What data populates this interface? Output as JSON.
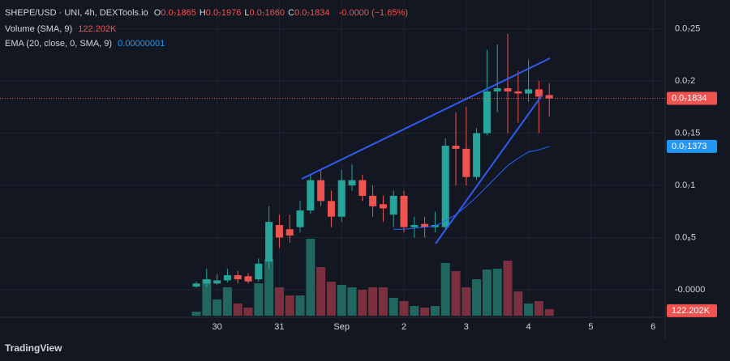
{
  "chart_data": {
    "type": "candlestick",
    "header": {
      "symbol": "SHEPE/USD · UNI, 4h, DEXTools.io",
      "ohlc": [
        {
          "key": "O",
          "label": "0.0₇1865"
        },
        {
          "key": "H",
          "label": "0.0₇1976"
        },
        {
          "key": "L",
          "label": "0.0₇1660"
        },
        {
          "key": "C",
          "label": "0.0₇1834"
        }
      ],
      "change": "-0.0000 (−1.65%)"
    },
    "categories": [
      null,
      null,
      "30",
      null,
      null,
      null,
      null,
      null,
      "31",
      null,
      null,
      null,
      null,
      null,
      "Sep",
      null,
      null,
      null,
      null,
      null,
      "2",
      null,
      null,
      null,
      null,
      null,
      "3",
      null,
      null,
      null,
      null,
      null,
      "4",
      null,
      null,
      null,
      null,
      null,
      "5",
      null,
      null,
      null,
      null,
      null,
      "6"
    ],
    "open": [
      3e-10,
      6e-10,
      6e-10,
      9e-10,
      1.4e-09,
      1.3e-09,
      1e-09,
      2.7e-09,
      6.2e-09,
      5.8e-09,
      6e-09,
      7.6e-09,
      1.05e-08,
      8.5e-09,
      7e-09,
      1e-08,
      1.05e-08,
      9e-09,
      8.2e-09,
      7.2e-09,
      9e-09,
      6e-09,
      6.3e-09,
      6e-09,
      6e-09,
      1.38e-08,
      1.35e-08,
      1.08e-08,
      1.5e-08,
      1.9e-08,
      1.93e-08,
      1.9e-08,
      1.88e-08,
      1.92e-08,
      1.865e-08,
      null,
      null,
      null,
      null,
      null,
      null,
      null,
      null,
      null,
      null
    ],
    "high": [
      8e-10,
      2e-09,
      1.5e-09,
      2e-09,
      1.8e-09,
      1.6e-09,
      3e-09,
      8e-09,
      7.2e-09,
      7.2e-09,
      8.5e-09,
      1.1e-08,
      1.15e-08,
      9.5e-09,
      1.15e-08,
      1.2e-08,
      1.1e-08,
      1e-08,
      9e-09,
      9.5e-09,
      9.5e-09,
      7e-09,
      7e-09,
      7.5e-09,
      1.45e-08,
      1.7e-08,
      1.75e-08,
      1.55e-08,
      2.3e-08,
      2.35e-08,
      2.45e-08,
      2.1e-08,
      2.2e-08,
      2e-08,
      1.976e-08,
      null,
      null,
      null,
      null,
      null,
      null,
      null,
      null,
      null,
      null
    ],
    "low": [
      2e-10,
      3e-10,
      5e-10,
      7e-10,
      6e-10,
      6e-10,
      8e-10,
      2e-09,
      4e-09,
      4.5e-09,
      5.5e-09,
      7.3e-09,
      8e-09,
      6e-09,
      6.5e-09,
      9.5e-09,
      8.5e-09,
      7e-09,
      6.5e-09,
      6e-09,
      5.5e-09,
      5e-09,
      5e-09,
      5.5e-09,
      5.8e-09,
      1e-08,
      1e-08,
      1.05e-08,
      1.48e-08,
      1.7e-08,
      1.5e-08,
      1.6e-08,
      1.8e-08,
      1.5e-08,
      1.66e-08,
      null,
      null,
      null,
      null,
      null,
      null,
      null,
      null,
      null,
      null
    ],
    "close": [
      6e-10,
      1e-09,
      9e-10,
      1.4e-09,
      1e-09,
      8e-10,
      2.5e-09,
      6.5e-09,
      5e-09,
      5.2e-09,
      7.6e-09,
      1.05e-08,
      8.5e-09,
      7e-09,
      1.05e-08,
      1.05e-08,
      9e-09,
      8e-09,
      7.8e-09,
      9e-09,
      6e-09,
      6.2e-09,
      6e-09,
      6.2e-09,
      1.38e-08,
      1.35e-08,
      1.08e-08,
      1.5e-08,
      1.9e-08,
      1.93e-08,
      1.9e-08,
      1.88e-08,
      1.92e-08,
      1.85e-08,
      1.834e-08,
      null,
      null,
      null,
      null,
      null,
      null,
      null,
      null,
      null,
      null
    ],
    "close_label": "0.0₇1834",
    "up_color": "#26a69a",
    "down_color": "#ef5350",
    "volume": {
      "name": "Volume (SMA, 9)",
      "last_label": "122.202K",
      "up_color": "#22675f",
      "down_color": "#7b3040",
      "values": [
        75000,
        675000,
        300000,
        525000,
        225000,
        150000,
        600000,
        1050000,
        525000,
        375000,
        375000,
        1425000,
        900000,
        630000,
        570000,
        525000,
        480000,
        525000,
        525000,
        330000,
        270000,
        180000,
        150000,
        180000,
        975000,
        825000,
        525000,
        675000,
        855000,
        870000,
        1020000,
        450000,
        225000,
        270000,
        122202,
        null,
        null,
        null,
        null,
        null,
        null,
        null,
        null,
        null,
        null
      ]
    },
    "ema": {
      "name": "EMA (20, close, 0, SMA, 9)",
      "legend_value": "0.00000001",
      "last_label": "0.0₇1373",
      "color": "#2962ff",
      "values": [
        null,
        null,
        null,
        null,
        null,
        null,
        null,
        null,
        null,
        null,
        null,
        null,
        null,
        null,
        null,
        null,
        null,
        null,
        null,
        5.8e-09,
        5.8e-09,
        5.9e-09,
        6e-09,
        6.1e-09,
        6.6e-09,
        7.2e-09,
        8e-09,
        8.9e-09,
        9.9e-09,
        1.09e-08,
        1.19e-08,
        1.26e-08,
        1.32e-08,
        1.34e-08,
        1.373e-08,
        null,
        null,
        null,
        null,
        null,
        null,
        null,
        null,
        null,
        null
      ]
    },
    "ylim": [
      -2.48e-09,
      2.698e-08
    ],
    "yticks": [
      {
        "value": 0,
        "label": "-0.0000"
      },
      {
        "value": 5e-09,
        "label": "0.0₈5"
      },
      {
        "value": 1e-08,
        "label": "0.0₇1"
      },
      {
        "value": 1.5e-08,
        "label": "0.0₇15"
      },
      {
        "value": 2e-08,
        "label": "0.0₇2"
      },
      {
        "value": 2.5e-08,
        "label": "0.0₇25"
      }
    ],
    "grid": true,
    "brand": "TradingView"
  }
}
